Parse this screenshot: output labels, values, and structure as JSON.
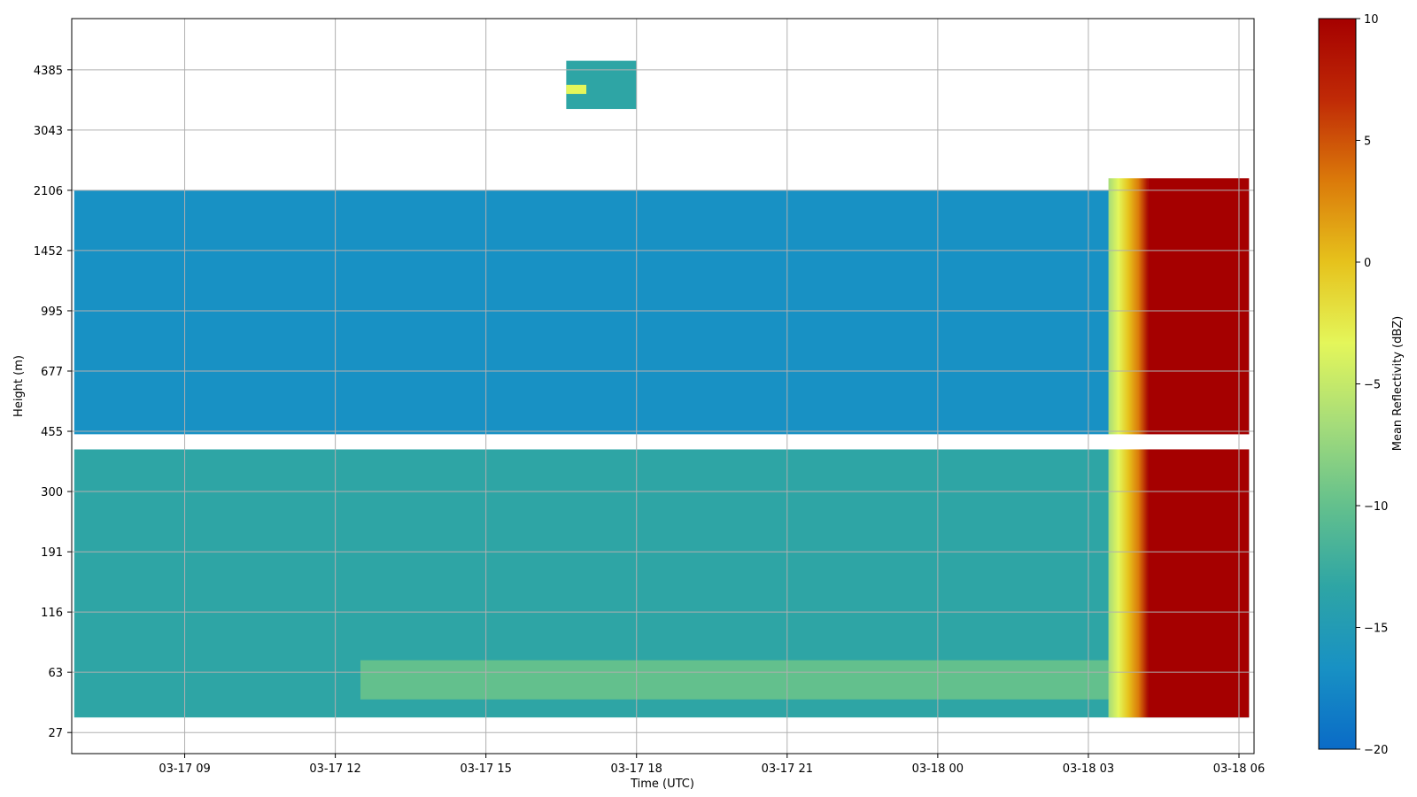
{
  "chart_data": {
    "type": "heatmap",
    "title": "",
    "xlabel": "Time (UTC)",
    "ylabel": "Height (m)",
    "x_ticks": [
      {
        "label": "03-17 09",
        "hour": 9
      },
      {
        "label": "03-17 12",
        "hour": 12
      },
      {
        "label": "03-17 15",
        "hour": 15
      },
      {
        "label": "03-17 18",
        "hour": 18
      },
      {
        "label": "03-17 21",
        "hour": 21
      },
      {
        "label": "03-18 00",
        "hour": 24
      },
      {
        "label": "03-18 03",
        "hour": 27
      },
      {
        "label": "03-18 06",
        "hour": 30
      }
    ],
    "x_range_hours": [
      6.75,
      30.3
    ],
    "y_ticks": [
      "27",
      "63",
      "116",
      "191",
      "300",
      "455",
      "677",
      "995",
      "1452",
      "2106",
      "3043",
      "4385"
    ],
    "y_range_ticks": [
      -0.35,
      11.85
    ],
    "grid": true,
    "colorbar": {
      "label": "Mean Reflectivity (dBZ)",
      "min": -20,
      "max": 10,
      "ticks": [
        "10",
        "5",
        "0",
        "−5",
        "−10",
        "−15",
        "−20"
      ],
      "colors": [
        "#0a6bc7",
        "#1891c4",
        "#2ea5a5",
        "#63c08d",
        "#a5dc7a",
        "#e4f65a",
        "#e6c21c",
        "#db7a0a",
        "#c02a06",
        "#a50000"
      ]
    },
    "regions": [
      {
        "name": "low-cloud-layer",
        "t": [
          6.8,
          30.2
        ],
        "y": [
          0.25,
          4.7
        ],
        "dbz": -15
      },
      {
        "name": "near-surface-enhanced",
        "t": [
          12.5,
          30.2
        ],
        "y": [
          0.55,
          1.2
        ],
        "dbz": -11
      },
      {
        "name": "boundary-layer-cloud",
        "t": [
          6.8,
          30.2
        ],
        "y": [
          4.95,
          9.0
        ],
        "dbz": -16
      },
      {
        "name": "upper-cloud",
        "t": [
          16.6,
          18.0
        ],
        "y": [
          10.35,
          11.15
        ],
        "dbz": -12
      },
      {
        "name": "upper-cloud-core",
        "t": [
          16.6,
          17.0
        ],
        "y": [
          10.6,
          10.75
        ],
        "dbz": -4
      },
      {
        "name": "precipitation",
        "t": [
          28.2,
          30.2
        ],
        "y": [
          0.25,
          9.2
        ],
        "dbz": 10
      }
    ]
  }
}
